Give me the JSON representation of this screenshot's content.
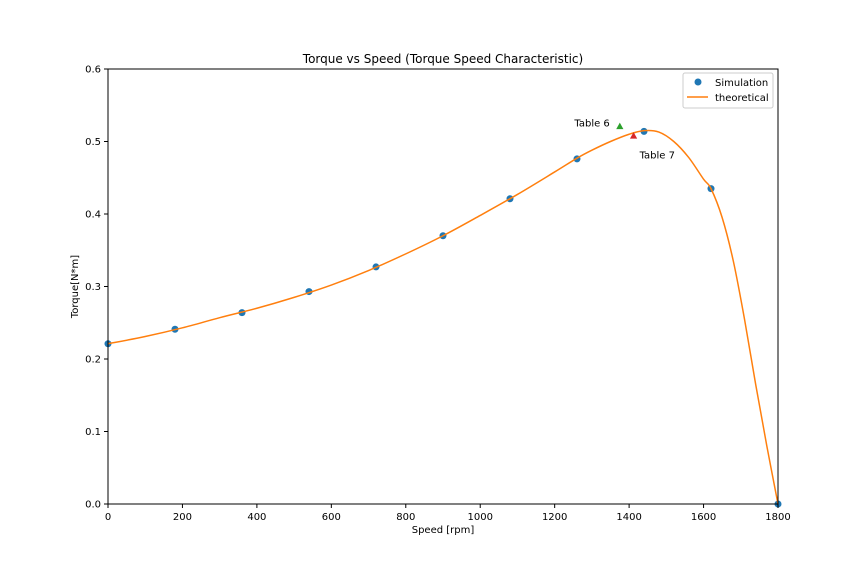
{
  "chart_data": {
    "type": "scatter",
    "title": "Torque vs Speed (Torque Speed Characteristic)",
    "xlabel": "Speed [rpm]",
    "ylabel": "Torque[N*m]",
    "xlim": [
      0,
      1800
    ],
    "ylim": [
      0,
      0.6
    ],
    "xticks": [
      0,
      200,
      400,
      600,
      800,
      1000,
      1200,
      1400,
      1600,
      1800
    ],
    "yticks": [
      0.0,
      0.1,
      0.2,
      0.3,
      0.4,
      0.5,
      0.6
    ],
    "xtick_labels": [
      "0",
      "200",
      "400",
      "600",
      "800",
      "1000",
      "1200",
      "1400",
      "1600",
      "1800"
    ],
    "ytick_labels": [
      "0.0",
      "0.1",
      "0.2",
      "0.3",
      "0.4",
      "0.5",
      "0.6"
    ],
    "grid": false,
    "legend_position": "top-right",
    "series": [
      {
        "name": "Simulation",
        "kind": "scatter",
        "color": "#1f77b4",
        "x": [
          0,
          180,
          360,
          540,
          720,
          900,
          1080,
          1260,
          1440,
          1620,
          1800
        ],
        "y": [
          0.221,
          0.241,
          0.264,
          0.293,
          0.327,
          0.37,
          0.421,
          0.476,
          0.514,
          0.435,
          0.0
        ]
      },
      {
        "name": "theoretical",
        "kind": "line",
        "color": "#ff7f0e",
        "x": [
          0,
          100,
          200,
          300,
          400,
          500,
          600,
          700,
          800,
          900,
          1000,
          1100,
          1200,
          1260,
          1300,
          1350,
          1400,
          1440,
          1480,
          1520,
          1560,
          1600,
          1620,
          1650,
          1680,
          1710,
          1740,
          1770,
          1800
        ],
        "y": [
          0.221,
          0.231,
          0.243,
          0.257,
          0.27,
          0.285,
          0.302,
          0.322,
          0.345,
          0.37,
          0.398,
          0.427,
          0.458,
          0.477,
          0.488,
          0.5,
          0.51,
          0.515,
          0.513,
          0.5,
          0.478,
          0.448,
          0.435,
          0.395,
          0.335,
          0.255,
          0.165,
          0.08,
          0.0
        ]
      }
    ],
    "markers": [
      {
        "label": "Table 6",
        "x": 1375,
        "y": 0.521,
        "color": "#2ca02c",
        "shape": "triangle",
        "label_side": "left"
      },
      {
        "label": "Table 7",
        "x": 1412,
        "y": 0.508,
        "color": "#d62728",
        "shape": "triangle",
        "label_side": "below-right"
      }
    ]
  }
}
